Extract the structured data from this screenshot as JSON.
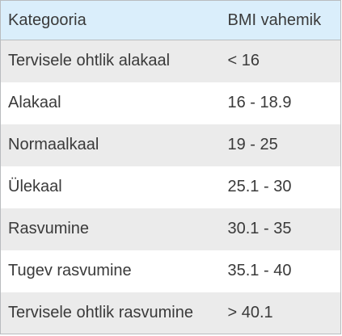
{
  "table": {
    "headers": {
      "category": "Kategooria",
      "range": "BMI vahemik"
    },
    "rows": [
      {
        "category": "Tervisele ohtlik alakaal",
        "range": "< 16"
      },
      {
        "category": "Alakaal",
        "range": "16 - 18.9"
      },
      {
        "category": "Normaalkaal",
        "range": "19 - 25"
      },
      {
        "category": "Ülekaal",
        "range": "25.1 - 30"
      },
      {
        "category": "Rasvumine",
        "range": "30.1 - 35"
      },
      {
        "category": "Tugev rasvumine",
        "range": "35.1 - 40"
      },
      {
        "category": "Tervisele ohtlik rasvumine",
        "range": "> 40.1"
      }
    ]
  },
  "colors": {
    "header_background": "#daeefb",
    "stripe_background": "#ebebeb",
    "text": "#3a3a3a",
    "border": "#b9bcbf"
  }
}
